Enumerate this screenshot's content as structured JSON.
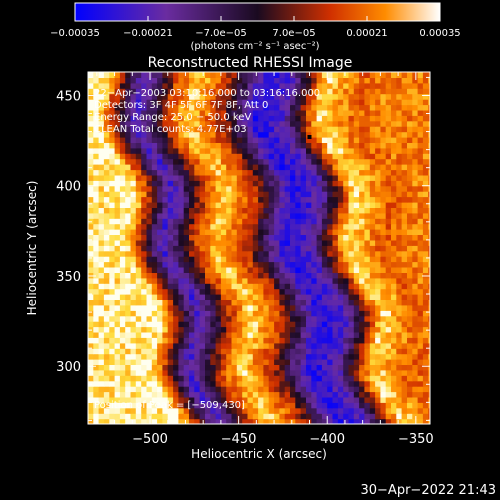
{
  "chart_data": {
    "type": "heatmap",
    "title": "Reconstructed RHESSI Image",
    "xlabel": "Heliocentric X (arcsec)",
    "ylabel": "Heliocentric Y (arcsec)",
    "xlim": [
      -535,
      -342
    ],
    "ylim": [
      268,
      463
    ],
    "xticks": [
      -500,
      -450,
      -400,
      -350
    ],
    "xtick_labels": [
      "−500",
      "−450",
      "−400",
      "−350"
    ],
    "yticks": [
      300,
      350,
      400,
      450
    ],
    "ytick_labels": [
      "300",
      "350",
      "400",
      "450"
    ],
    "colorbar": {
      "range": [
        -0.00035,
        0.00035
      ],
      "ticks": [
        -0.00035,
        -0.00021,
        -7e-05,
        7e-05,
        0.00021,
        0.00035
      ],
      "tick_labels": [
        "−0.00035",
        "−0.00021",
        "−7.0e−05",
        "7.0e−05",
        "0.00021",
        "0.00035"
      ],
      "unit_label": "(photons cm⁻² s⁻¹ asec⁻²)",
      "colors": [
        "#0000ff",
        "#6a2ca0",
        "#1a0a20",
        "#d03000",
        "#ff8c00",
        "#ffffff"
      ]
    },
    "annotations": [
      "22−Apr−2003 03:10:16.000 to 03:16:16.000",
      "Detectors: 3F 4F 5F 6F 7F 8F, Att 0",
      "Energy Range: 25.0 − 50.0 keV",
      "CLEAN  Total counts: 4.77E+03"
    ],
    "peak_label": "Position of Peak = [−509,430]",
    "peak": [
      -509,
      430
    ],
    "stripes": [
      {
        "name": "",
        "x": [
          -525,
          -510,
          -488,
          -470,
          -458,
          -440,
          -420,
          -405,
          -385,
          -365,
          -350
        ],
        "intensity": [
          0.9,
          0.95,
          -0.7,
          0.4,
          0.85,
          0.3,
          -0.85,
          -0.6,
          0.9,
          0.5,
          0.6
        ]
      }
    ]
  },
  "footer": {
    "timestamp": "30−Apr−2022 21:43"
  }
}
